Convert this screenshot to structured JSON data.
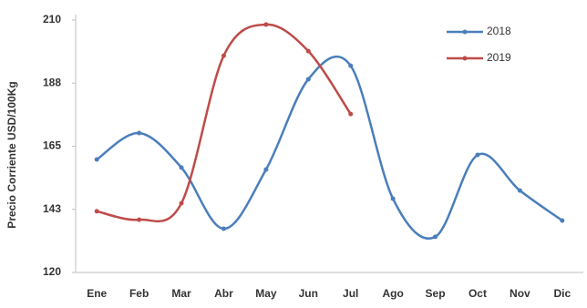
{
  "chart_data": {
    "type": "line",
    "y_label": "Precio Corriente USD/100Kg",
    "categories": [
      "Ene",
      "Feb",
      "Mar",
      "Abr",
      "May",
      "Jun",
      "Jul",
      "Ago",
      "Sep",
      "Oct",
      "Nov",
      "Dic"
    ],
    "series": [
      {
        "name": "2018",
        "color": "#4a7ebb",
        "values": [
          160.3,
          169.7,
          157.4,
          135.6,
          156.7,
          188.9,
          193.7,
          146.3,
          132.7,
          161.9,
          149.2,
          138.5
        ]
      },
      {
        "name": "2019",
        "color": "#be4b48",
        "values": [
          141.8,
          138.8,
          144.7,
          197.3,
          208.4,
          198.9,
          176.5,
          null,
          null,
          null,
          null,
          null
        ]
      }
    ],
    "ylim": [
      120,
      210
    ],
    "yticks": [
      120,
      {
        "value": 142.5,
        "label": "143"
      },
      165,
      {
        "value": 187.5,
        "label": "188"
      },
      210
    ],
    "legend": "upper right",
    "smooth": true
  }
}
